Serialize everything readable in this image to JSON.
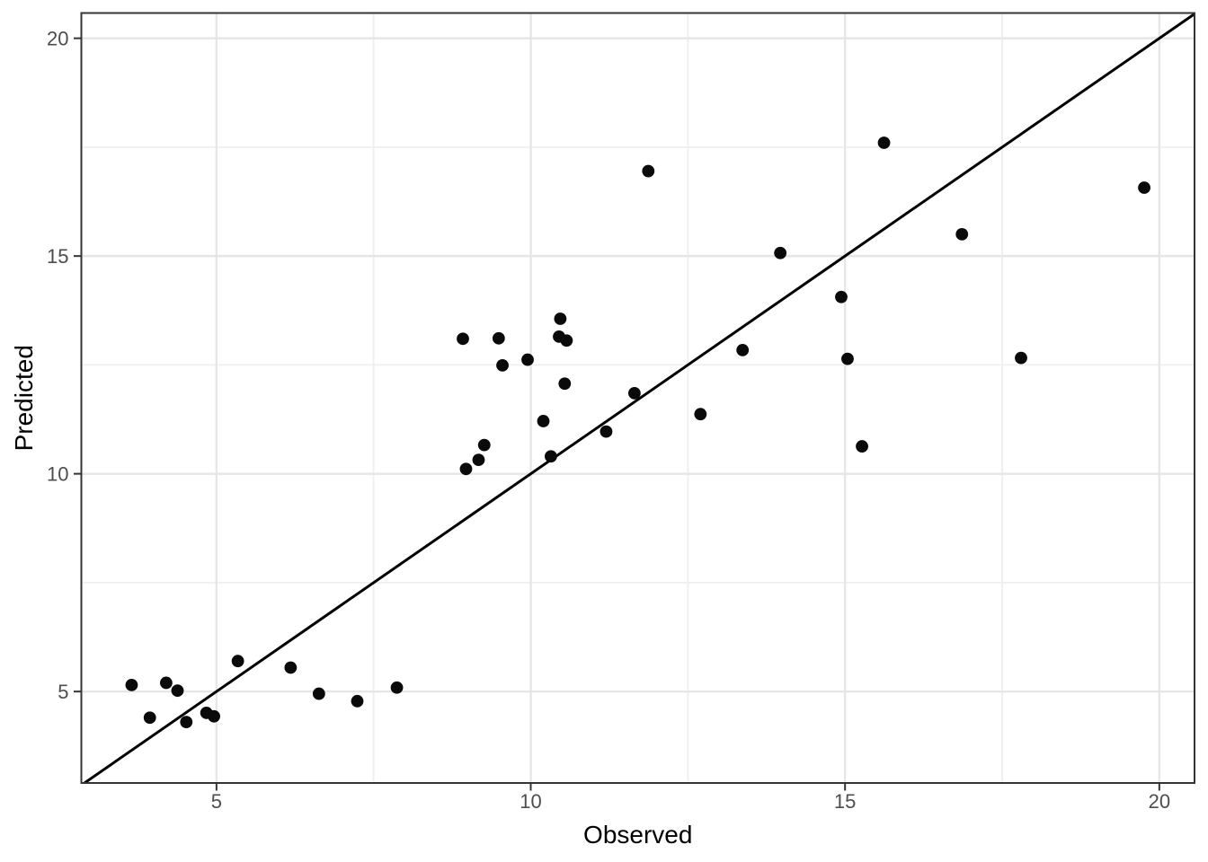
{
  "chart_data": {
    "type": "scatter",
    "title": "",
    "xlabel": "Observed",
    "ylabel": "Predicted",
    "x_ticks": [
      5,
      10,
      15,
      20
    ],
    "y_ticks": [
      5,
      10,
      15,
      20
    ],
    "x_minor_gridlines": [
      7.5,
      12.5,
      17.5
    ],
    "y_minor_gridlines": [
      7.5,
      12.5,
      17.5
    ],
    "xlim": [
      2.85,
      20.56
    ],
    "ylim": [
      2.9,
      20.58
    ],
    "grid": "on",
    "legend": "none",
    "identity_line": {
      "slope": 1,
      "intercept": 0
    },
    "points": [
      [
        3.65,
        5.15
      ],
      [
        3.94,
        4.4
      ],
      [
        4.2,
        5.2
      ],
      [
        4.38,
        5.02
      ],
      [
        4.52,
        4.3
      ],
      [
        4.84,
        4.51
      ],
      [
        4.96,
        4.43
      ],
      [
        5.34,
        5.7
      ],
      [
        6.18,
        5.55
      ],
      [
        6.63,
        4.95
      ],
      [
        7.24,
        4.78
      ],
      [
        7.87,
        5.09
      ],
      [
        8.92,
        13.1
      ],
      [
        8.97,
        10.11
      ],
      [
        9.17,
        10.32
      ],
      [
        9.26,
        10.66
      ],
      [
        9.49,
        13.11
      ],
      [
        9.55,
        12.49
      ],
      [
        9.95,
        12.62
      ],
      [
        10.2,
        11.21
      ],
      [
        10.32,
        10.4
      ],
      [
        10.45,
        13.15
      ],
      [
        10.47,
        13.56
      ],
      [
        10.54,
        12.07
      ],
      [
        10.57,
        13.06
      ],
      [
        11.2,
        10.97
      ],
      [
        11.65,
        11.85
      ],
      [
        11.87,
        16.95
      ],
      [
        12.7,
        11.37
      ],
      [
        13.37,
        12.84
      ],
      [
        13.97,
        15.07
      ],
      [
        14.94,
        14.06
      ],
      [
        15.04,
        12.64
      ],
      [
        15.27,
        10.63
      ],
      [
        15.62,
        17.6
      ],
      [
        16.86,
        15.5
      ],
      [
        17.8,
        12.66
      ],
      [
        19.76,
        16.57
      ]
    ],
    "colors": {
      "background": "#ffffff",
      "panel_background": "#ffffff",
      "panel_border": "#343434",
      "grid_major": "#e6e6e6",
      "grid_minor": "#efefef",
      "point": "#0a0a0a",
      "identity_line": "#000000",
      "tick_mark": "#343434",
      "tick_label": "#4d4d4d",
      "axis_title": "#000000"
    }
  }
}
